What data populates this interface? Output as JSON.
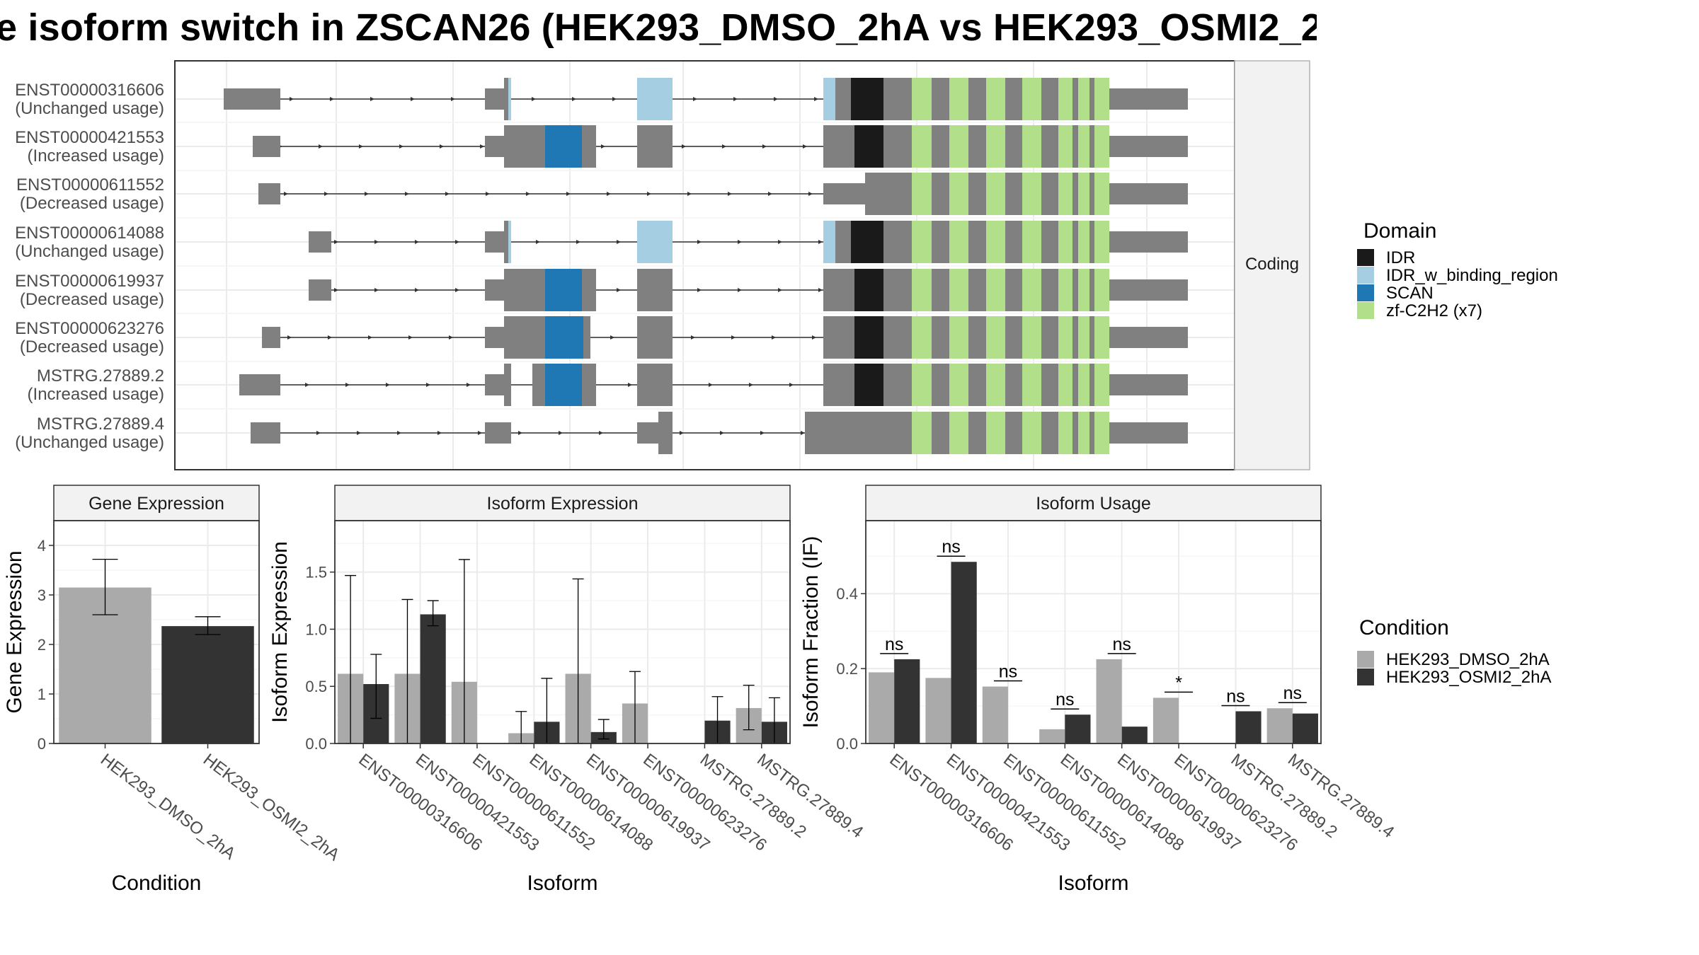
{
  "title": "e isoform switch in ZSCAN26 (HEK293_DMSO_2hA vs HEK293_OSMI2_2",
  "colors": {
    "intron_gray": "#808080",
    "IDR": "#1a1a1a",
    "IDR_w_binding_region": "#a6cee3",
    "SCAN": "#1f78b4",
    "zf": "#b2df8a",
    "dmso": "#aaaaaa",
    "osmi": "#333333",
    "grid": "#ebebeb",
    "strip": "#f2f2f2"
  },
  "structure": {
    "strip_label": "Coding",
    "transcripts": [
      {
        "id": "ENST00000316606",
        "usage": "(Unchanged usage)"
      },
      {
        "id": "ENST00000421553",
        "usage": "(Increased usage)"
      },
      {
        "id": "ENST00000611552",
        "usage": "(Decreased usage)"
      },
      {
        "id": "ENST00000614088",
        "usage": "(Unchanged usage)"
      },
      {
        "id": "ENST00000619937",
        "usage": "(Decreased usage)"
      },
      {
        "id": "ENST00000623276",
        "usage": "(Decreased usage)"
      },
      {
        "id": "MSTRG.27889.2",
        "usage": "(Increased usage)"
      },
      {
        "id": "MSTRG.27889.4",
        "usage": "(Unchanged usage)"
      }
    ]
  },
  "legend_domain": {
    "title": "Domain",
    "items": [
      {
        "label": "IDR",
        "color": "#1a1a1a"
      },
      {
        "label": "IDR_w_binding_region",
        "color": "#a6cee3"
      },
      {
        "label": "SCAN",
        "color": "#1f78b4"
      },
      {
        "label": "zf-C2H2 (x7)",
        "color": "#b2df8a"
      }
    ]
  },
  "legend_condition": {
    "title": "Condition",
    "items": [
      {
        "label": "HEK293_DMSO_2hA",
        "color": "#aaaaaa"
      },
      {
        "label": "HEK293_OSMI2_2hA",
        "color": "#333333"
      }
    ]
  },
  "chart_data": [
    {
      "type": "bar",
      "title": "Gene Expression",
      "xlabel": "Condition",
      "ylabel": "Gene Expression",
      "categories": [
        "HEK293_DMSO_2hA",
        "HEK293_OSMI2_2hA"
      ],
      "values": [
        3.15,
        2.37
      ],
      "err_low": [
        2.6,
        2.2
      ],
      "err_high": [
        3.72,
        2.56
      ],
      "ylim": [
        0,
        4.5
      ],
      "yticks": [
        "0",
        "1",
        "2",
        "3",
        "4"
      ]
    },
    {
      "type": "bar",
      "title": "Isoform Expression",
      "xlabel": "Isoform",
      "ylabel": "Isoform Expression",
      "categories": [
        "ENST00000316606",
        "ENST00000421553",
        "ENST00000611552",
        "ENST00000614088",
        "ENST00000619937",
        "ENST00000623276",
        "MSTRG.27889.2",
        "MSTRG.27889.4"
      ],
      "series": [
        {
          "name": "HEK293_DMSO_2hA",
          "values": [
            0.61,
            0.61,
            0.54,
            0.09,
            0.61,
            0.35,
            0.0,
            0.31
          ],
          "err_low": [
            0.0,
            0.0,
            0.0,
            0.0,
            0.0,
            0.0,
            0.0,
            0.12
          ],
          "err_high": [
            1.47,
            1.26,
            1.61,
            0.28,
            1.44,
            0.63,
            0.0,
            0.51
          ]
        },
        {
          "name": "HEK293_OSMI2_2hA",
          "values": [
            0.52,
            1.13,
            0.0,
            0.19,
            0.1,
            0.0,
            0.2,
            0.19
          ],
          "err_low": [
            0.22,
            1.03,
            0.0,
            0.0,
            0.04,
            0.0,
            0.0,
            0.0
          ],
          "err_high": [
            0.78,
            1.25,
            0.0,
            0.57,
            0.21,
            0.0,
            0.41,
            0.4
          ]
        }
      ],
      "ylim": [
        0,
        1.95
      ],
      "yticks": [
        "0.0",
        "0.5",
        "1.0",
        "1.5"
      ]
    },
    {
      "type": "bar",
      "title": "Isoform Usage",
      "xlabel": "Isoform",
      "ylabel": "Isoform Fraction (IF)",
      "categories": [
        "ENST00000316606",
        "ENST00000421553",
        "ENST00000611552",
        "ENST00000614088",
        "ENST00000619937",
        "ENST00000623276",
        "MSTRG.27889.2",
        "MSTRG.27889.4"
      ],
      "series": [
        {
          "name": "HEK293_DMSO_2hA",
          "values": [
            0.19,
            0.175,
            0.152,
            0.038,
            0.225,
            0.122,
            0.0,
            0.094
          ]
        },
        {
          "name": "HEK293_OSMI2_2hA",
          "values": [
            0.225,
            0.485,
            0.0,
            0.077,
            0.045,
            0.0,
            0.086,
            0.08
          ]
        }
      ],
      "significance": [
        "ns",
        "ns",
        "ns",
        "ns",
        "ns",
        "*",
        "ns",
        "ns"
      ],
      "ylim": [
        0,
        0.595
      ],
      "yticks": [
        "0.0",
        "0.2",
        "0.4"
      ]
    }
  ]
}
